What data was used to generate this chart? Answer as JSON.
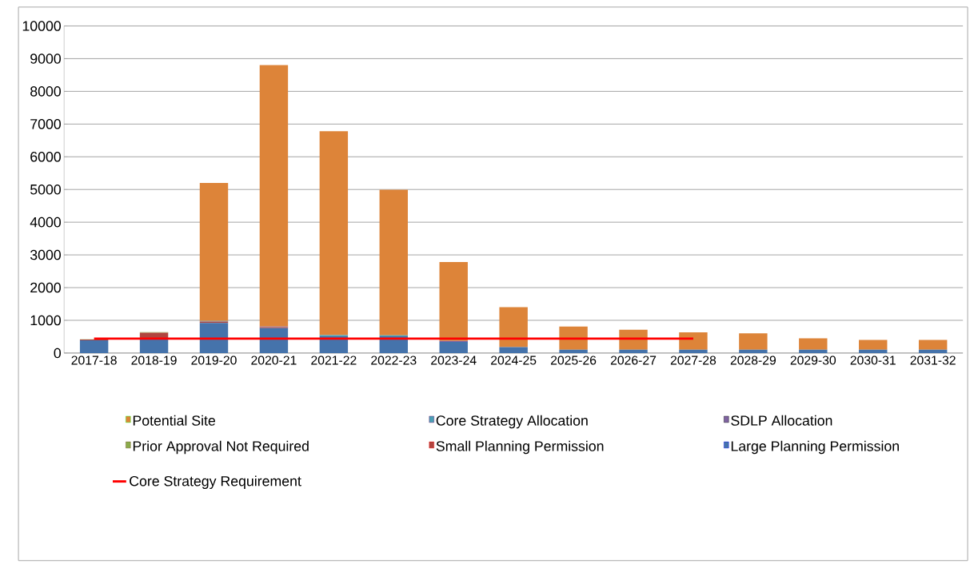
{
  "chart_data": {
    "type": "bar",
    "stacked": true,
    "categories": [
      "2017-18",
      "2018-19",
      "2019-20",
      "2020-21",
      "2021-22",
      "2022-23",
      "2023-24",
      "2024-25",
      "2025-26",
      "2026-27",
      "2027-28",
      "2028-29",
      "2029-30",
      "2030-31",
      "2031-32"
    ],
    "series": [
      {
        "name": "Large Planning Permission",
        "color": "#4573ab",
        "values": [
          390,
          460,
          920,
          760,
          510,
          510,
          340,
          180,
          100,
          100,
          100,
          100,
          100,
          100,
          100
        ]
      },
      {
        "name": "Small Planning Permission",
        "color": "#b0453f",
        "values": [
          20,
          160,
          40,
          30,
          0,
          0,
          0,
          0,
          0,
          0,
          0,
          0,
          0,
          0,
          0
        ]
      },
      {
        "name": "Prior Approval Not Required",
        "color": "#8aab4a",
        "values": [
          10,
          20,
          0,
          0,
          0,
          0,
          0,
          0,
          0,
          0,
          0,
          0,
          0,
          0,
          0
        ]
      },
      {
        "name": "SDLP Allocation",
        "color": "#7f63a1",
        "values": [
          0,
          0,
          0,
          20,
          0,
          0,
          30,
          0,
          0,
          0,
          0,
          0,
          0,
          0,
          0
        ]
      },
      {
        "name": "Core Strategy Allocation",
        "color": "#4aa0b5",
        "values": [
          0,
          0,
          20,
          0,
          40,
          30,
          0,
          0,
          0,
          0,
          0,
          0,
          0,
          0,
          0
        ]
      },
      {
        "name": "Potential Site",
        "color": "#dd8439",
        "values": [
          0,
          0,
          4220,
          7990,
          6230,
          4450,
          2410,
          1220,
          710,
          610,
          530,
          500,
          350,
          300,
          300
        ]
      },
      {
        "name": "Core Strategy Requirement",
        "type": "line",
        "color": "#ff0000",
        "values": [
          440,
          440,
          440,
          440,
          440,
          440,
          440,
          440,
          440,
          440,
          440,
          null,
          null,
          null,
          null
        ]
      }
    ],
    "ylim": [
      0,
      10000
    ],
    "yticks": [
      0,
      1000,
      2000,
      3000,
      4000,
      5000,
      6000,
      7000,
      8000,
      9000,
      10000
    ],
    "grid": "y",
    "legend": "bottom"
  }
}
